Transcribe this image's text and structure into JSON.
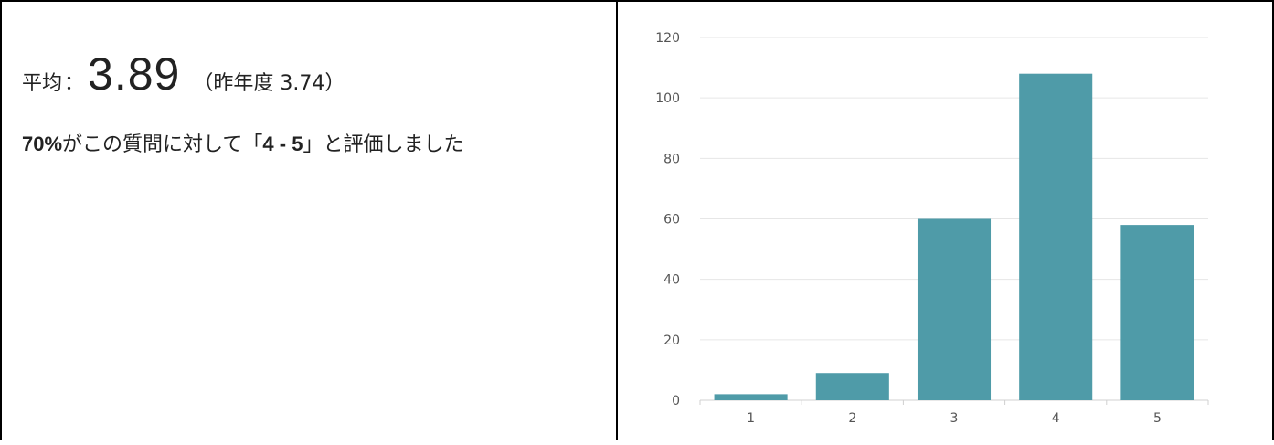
{
  "summary": {
    "avg_label": "平均",
    "avg_colon": "：",
    "avg_value": "3.89",
    "prev_open": "（",
    "prev_label": "昨年度",
    "prev_value": "3.74",
    "prev_close": "）",
    "pct": "70%",
    "text1": "がこの質問に対して",
    "bracket_open": "「",
    "range": "4 - 5",
    "bracket_close": "」",
    "text2": "と評価しました"
  },
  "chart_data": {
    "type": "bar",
    "categories": [
      "1",
      "2",
      "3",
      "4",
      "5"
    ],
    "values": [
      2,
      9,
      60,
      108,
      58
    ],
    "title": "",
    "xlabel": "",
    "ylabel": "",
    "ylim": [
      0,
      120
    ],
    "yticks": [
      0,
      20,
      40,
      60,
      80,
      100,
      120
    ],
    "grid": true,
    "bar_color": "#4f9ba8",
    "grid_color": "#e6e6e6"
  }
}
